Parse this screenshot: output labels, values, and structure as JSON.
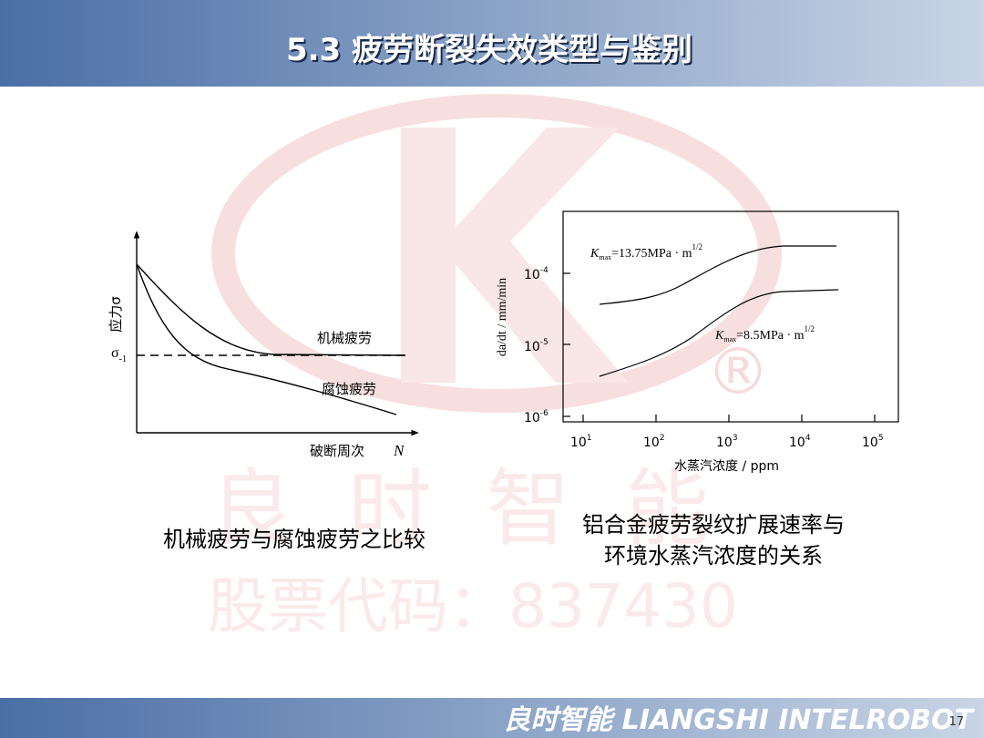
{
  "header": {
    "title": "5.3 疲劳断裂失效类型与鉴别"
  },
  "watermark": {
    "brand": "良时智能",
    "stock": "股票代码：837430"
  },
  "left_figure": {
    "y_axis_label": "应力σ",
    "limit_label": {
      "base": "σ",
      "sub": "-1"
    },
    "curve_labels": [
      "机械疲劳",
      "腐蚀疲劳"
    ],
    "x_axis_label": "破断周次",
    "x_axis_symbol": "N",
    "caption": "机械疲劳与腐蚀疲劳之比较"
  },
  "right_figure": {
    "y_axis_label": "da/dt / mm/min",
    "y_ticks": [
      {
        "base": "10",
        "exp": "-4"
      },
      {
        "base": "10",
        "exp": "-5"
      },
      {
        "base": "10",
        "exp": "-6"
      }
    ],
    "x_ticks": [
      {
        "base": "10",
        "exp": "1"
      },
      {
        "base": "10",
        "exp": "2"
      },
      {
        "base": "10",
        "exp": "3"
      },
      {
        "base": "10",
        "exp": "4"
      },
      {
        "base": "10",
        "exp": "5"
      }
    ],
    "x_axis_label": "水蒸汽浓度 / ppm",
    "curve_labels": [
      {
        "k": "K",
        "sub": "max",
        "rest": "=13.75MPa · m",
        "exp": "1/2"
      },
      {
        "k": "K",
        "sub": "max",
        "rest": "=8.5MPa · m",
        "exp": "1/2"
      }
    ],
    "caption": [
      "铝合金疲劳裂纹扩展速率与",
      "环境水蒸汽浓度的关系"
    ]
  },
  "footer": {
    "brand": "良时智能 LIANGSHI INTELROBOT",
    "page": "17"
  }
}
